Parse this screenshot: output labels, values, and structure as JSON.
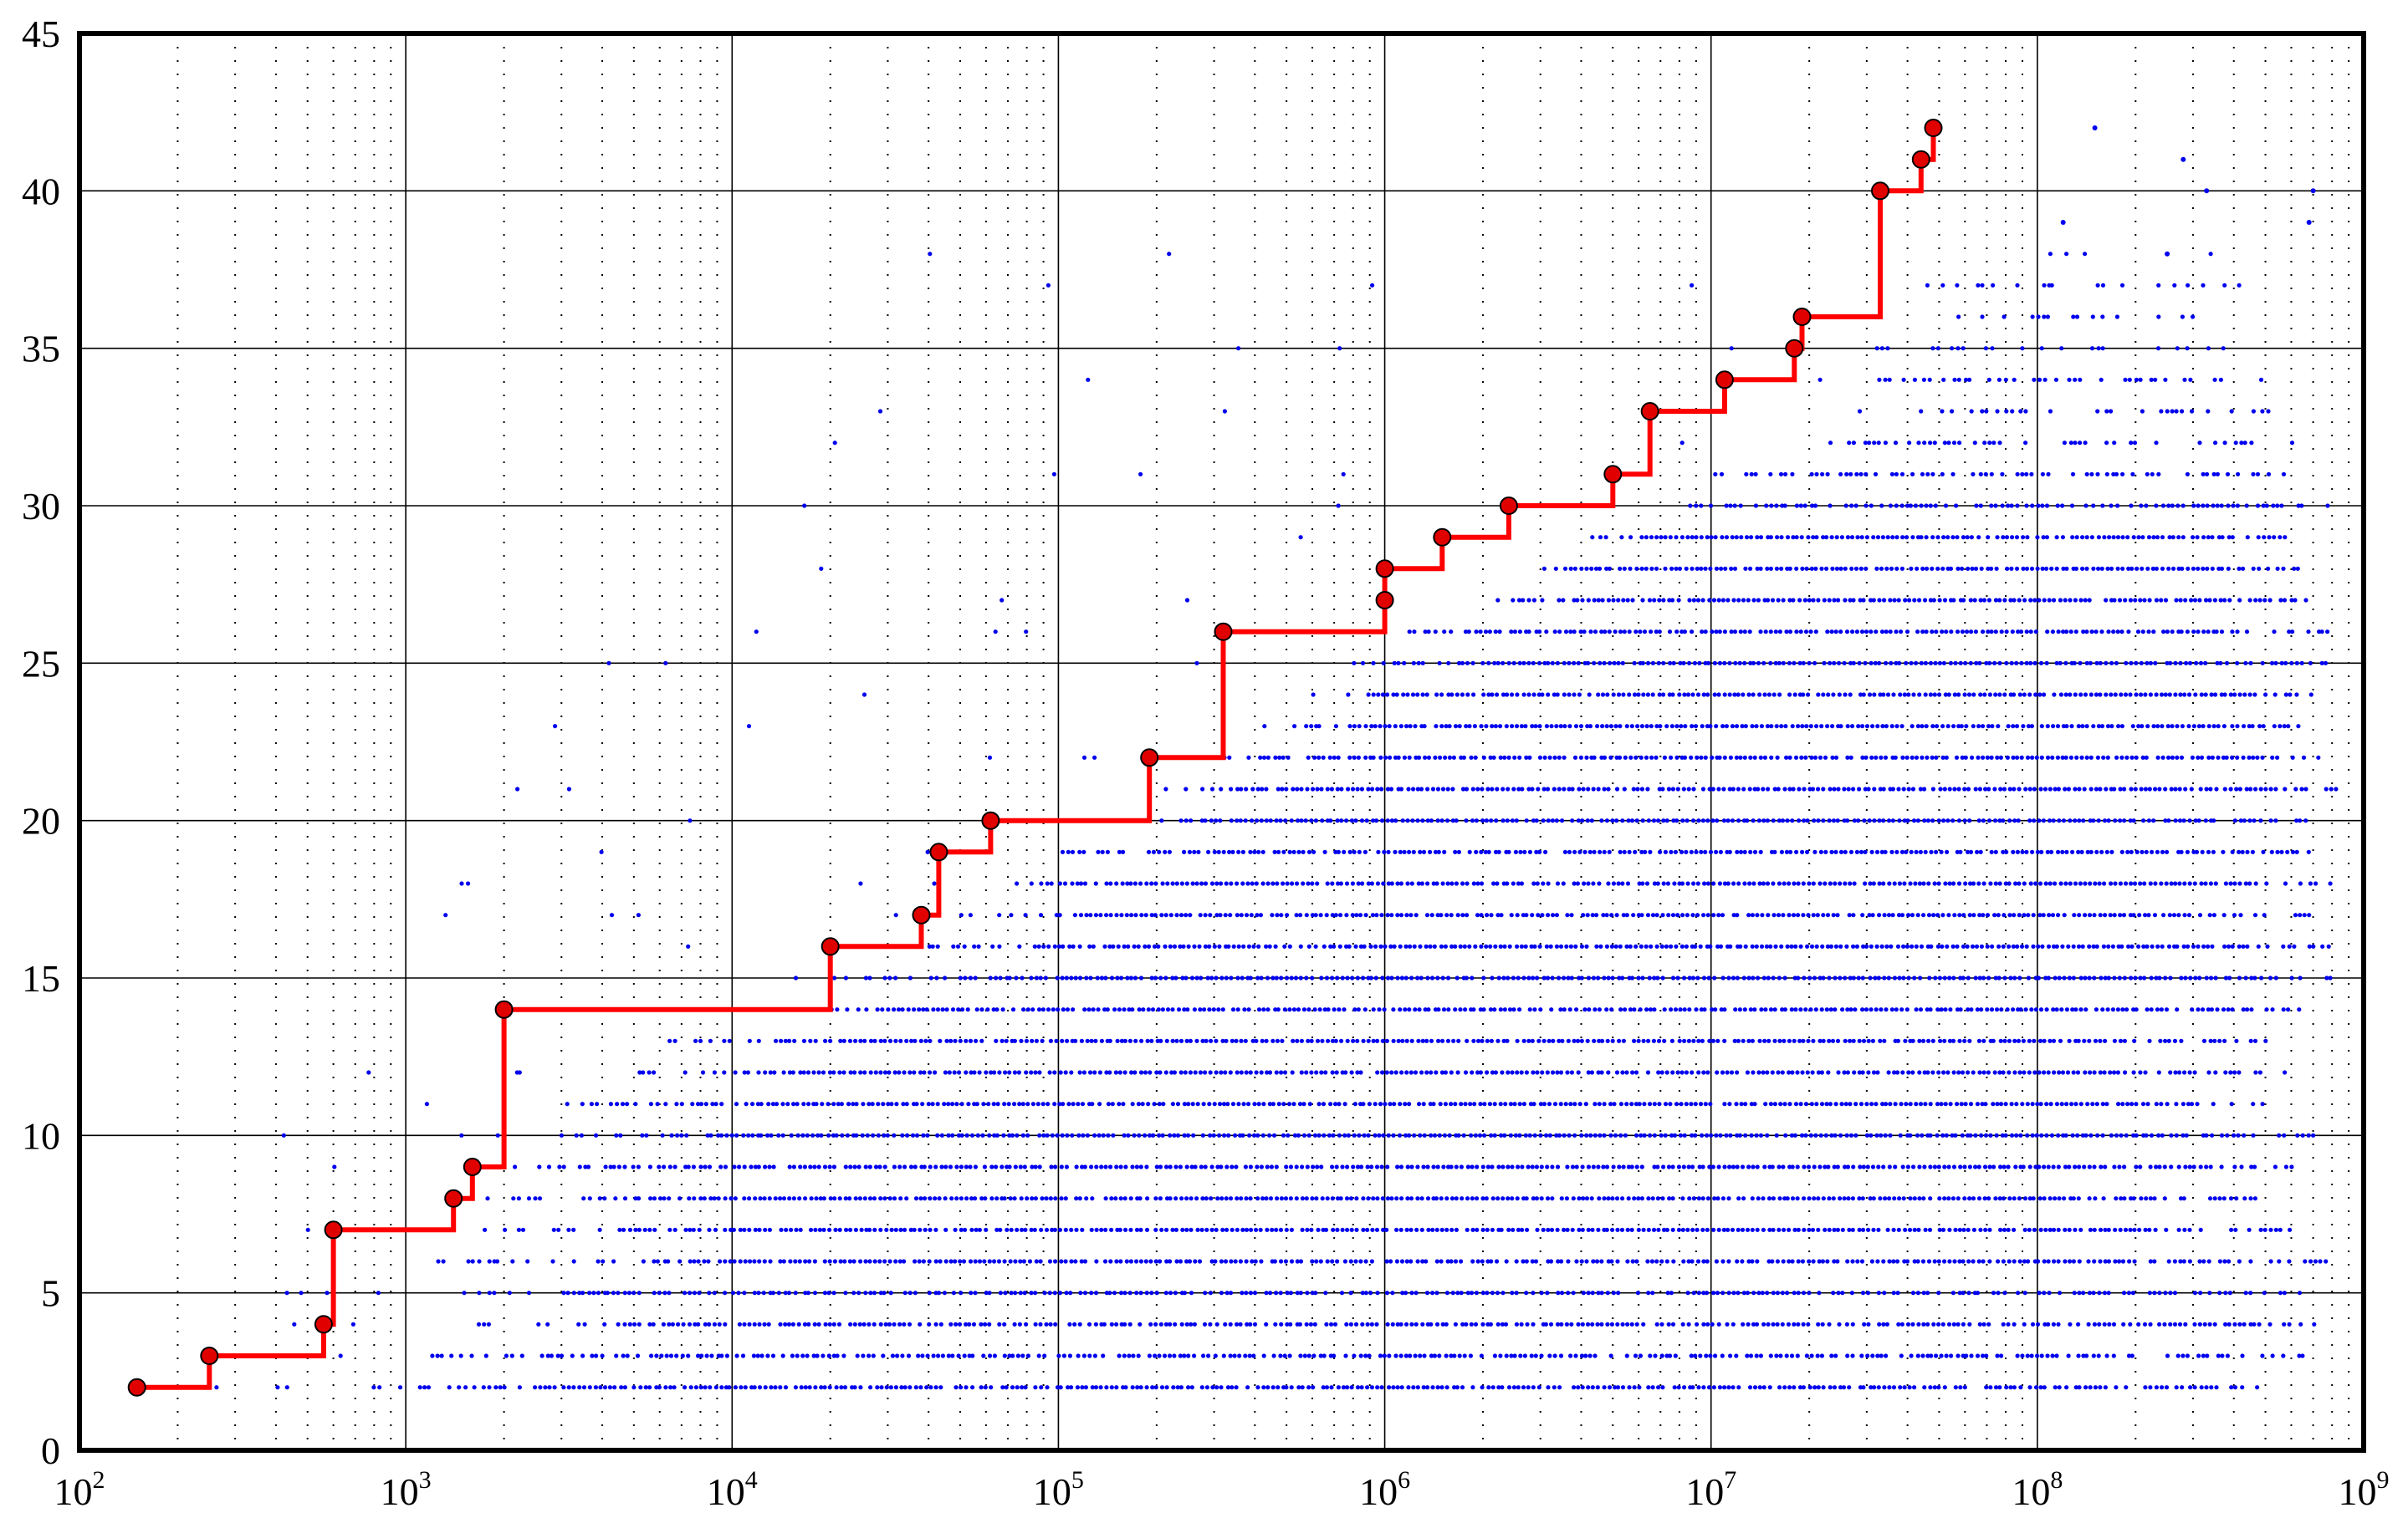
{
  "chart_data": {
    "type": "scatter",
    "title": "",
    "xlabel": "",
    "ylabel": "",
    "x_scale": "log",
    "xlim": [
      100,
      1000000000
    ],
    "ylim": [
      0,
      45
    ],
    "grid": true,
    "x_ticks": [
      {
        "base": "10",
        "exp": "2",
        "value": 100
      },
      {
        "base": "10",
        "exp": "3",
        "value": 1000
      },
      {
        "base": "10",
        "exp": "4",
        "value": 10000
      },
      {
        "base": "10",
        "exp": "5",
        "value": 100000
      },
      {
        "base": "10",
        "exp": "6",
        "value": 1000000
      },
      {
        "base": "10",
        "exp": "7",
        "value": 10000000
      },
      {
        "base": "10",
        "exp": "8",
        "value": 100000000
      },
      {
        "base": "10",
        "exp": "9",
        "value": 1000000000
      }
    ],
    "y_ticks": [
      "0",
      "5",
      "10",
      "15",
      "20",
      "25",
      "30",
      "35",
      "40",
      "45"
    ],
    "colors": {
      "record_line": "#ff0000",
      "record_marker_fill": "#e00000",
      "scatter": "#0000ee",
      "axis": "#000000"
    },
    "record_series": {
      "x": [
        150,
        250,
        560,
        600,
        1400,
        1600,
        2000,
        20000,
        38000,
        43000,
        62000,
        190000,
        320000,
        1000000,
        1000000,
        1500000,
        2400000,
        5000000,
        6500000,
        11000000,
        18000000,
        19000000,
        33000000,
        44000000,
        48000000
      ],
      "y": [
        2,
        3,
        4,
        7,
        8,
        9,
        14,
        16,
        17,
        19,
        20,
        22,
        26,
        27,
        28,
        29,
        30,
        31,
        33,
        34,
        35,
        36,
        40,
        41,
        42
      ]
    },
    "scatter_rows": [
      {
        "y": 2,
        "x_min": 800,
        "x_max": 600000000,
        "density": 0.9
      },
      {
        "y": 3,
        "x_min": 1200,
        "x_max": 700000000,
        "density": 0.8
      },
      {
        "y": 4,
        "x_min": 1500,
        "x_max": 800000000,
        "density": 0.85
      },
      {
        "y": 5,
        "x_min": 1500,
        "x_max": 700000000,
        "density": 0.8
      },
      {
        "y": 6,
        "x_min": 1500,
        "x_max": 800000000,
        "density": 0.9
      },
      {
        "y": 7,
        "x_min": 2000,
        "x_max": 600000000,
        "density": 0.95
      },
      {
        "y": 8,
        "x_min": 2000,
        "x_max": 500000000,
        "density": 0.95
      },
      {
        "y": 9,
        "x_min": 2000,
        "x_max": 600000000,
        "density": 0.95
      },
      {
        "y": 10,
        "x_min": 3000,
        "x_max": 700000000,
        "density": 0.95
      },
      {
        "y": 11,
        "x_min": 3000,
        "x_max": 500000000,
        "density": 0.95
      },
      {
        "y": 12,
        "x_min": 5000,
        "x_max": 600000000,
        "density": 0.95
      },
      {
        "y": 13,
        "x_min": 6000,
        "x_max": 600000000,
        "density": 0.95
      },
      {
        "y": 14,
        "x_min": 10000,
        "x_max": 700000000,
        "density": 0.95
      },
      {
        "y": 15,
        "x_min": 20000,
        "x_max": 800000000,
        "density": 0.95
      },
      {
        "y": 16,
        "x_min": 40000,
        "x_max": 800000000,
        "density": 0.95
      },
      {
        "y": 17,
        "x_min": 50000,
        "x_max": 700000000,
        "density": 0.95
      },
      {
        "y": 18,
        "x_min": 60000,
        "x_max": 800000000,
        "density": 0.95
      },
      {
        "y": 19,
        "x_min": 100000,
        "x_max": 700000000,
        "density": 0.95
      },
      {
        "y": 20,
        "x_min": 150000,
        "x_max": 800000000,
        "density": 0.95
      },
      {
        "y": 21,
        "x_min": 200000,
        "x_max": 900000000,
        "density": 0.95
      },
      {
        "y": 22,
        "x_min": 300000,
        "x_max": 800000000,
        "density": 0.95
      },
      {
        "y": 23,
        "x_min": 400000,
        "x_max": 700000000,
        "density": 0.95
      },
      {
        "y": 24,
        "x_min": 600000,
        "x_max": 700000000,
        "density": 0.95
      },
      {
        "y": 25,
        "x_min": 800000,
        "x_max": 800000000,
        "density": 0.95
      },
      {
        "y": 26,
        "x_min": 1000000,
        "x_max": 800000000,
        "density": 0.95
      },
      {
        "y": 27,
        "x_min": 2000000,
        "x_max": 700000000,
        "density": 0.95
      },
      {
        "y": 28,
        "x_min": 3000000,
        "x_max": 700000000,
        "density": 0.95
      },
      {
        "y": 29,
        "x_min": 4000000,
        "x_max": 600000000,
        "density": 0.95
      },
      {
        "y": 30,
        "x_min": 7000000,
        "x_max": 800000000,
        "density": 0.7
      },
      {
        "y": 31,
        "x_min": 10000000,
        "x_max": 700000000,
        "density": 0.55
      },
      {
        "y": 32,
        "x_min": 20000000,
        "x_max": 600000000,
        "density": 0.45
      },
      {
        "y": 33,
        "x_min": 25000000,
        "x_max": 600000000,
        "density": 0.35
      },
      {
        "y": 34,
        "x_min": 20000000,
        "x_max": 600000000,
        "density": 0.35
      },
      {
        "y": 35,
        "x_min": 30000000,
        "x_max": 500000000,
        "density": 0.25
      },
      {
        "y": 36,
        "x_min": 40000000,
        "x_max": 400000000,
        "density": 0.18
      },
      {
        "y": 37,
        "x_min": 40000000,
        "x_max": 500000000,
        "density": 0.15
      },
      {
        "y": 38,
        "x_min": 80000000,
        "x_max": 600000000,
        "density": 0.08
      }
    ],
    "scatter_isolated": [
      {
        "x": 150000000,
        "y": 42
      },
      {
        "x": 280000000,
        "y": 41
      },
      {
        "x": 330000000,
        "y": 40
      },
      {
        "x": 700000000,
        "y": 40
      },
      {
        "x": 120000000,
        "y": 39
      },
      {
        "x": 680000000,
        "y": 39
      },
      {
        "x": 250000000,
        "y": 38
      }
    ]
  }
}
